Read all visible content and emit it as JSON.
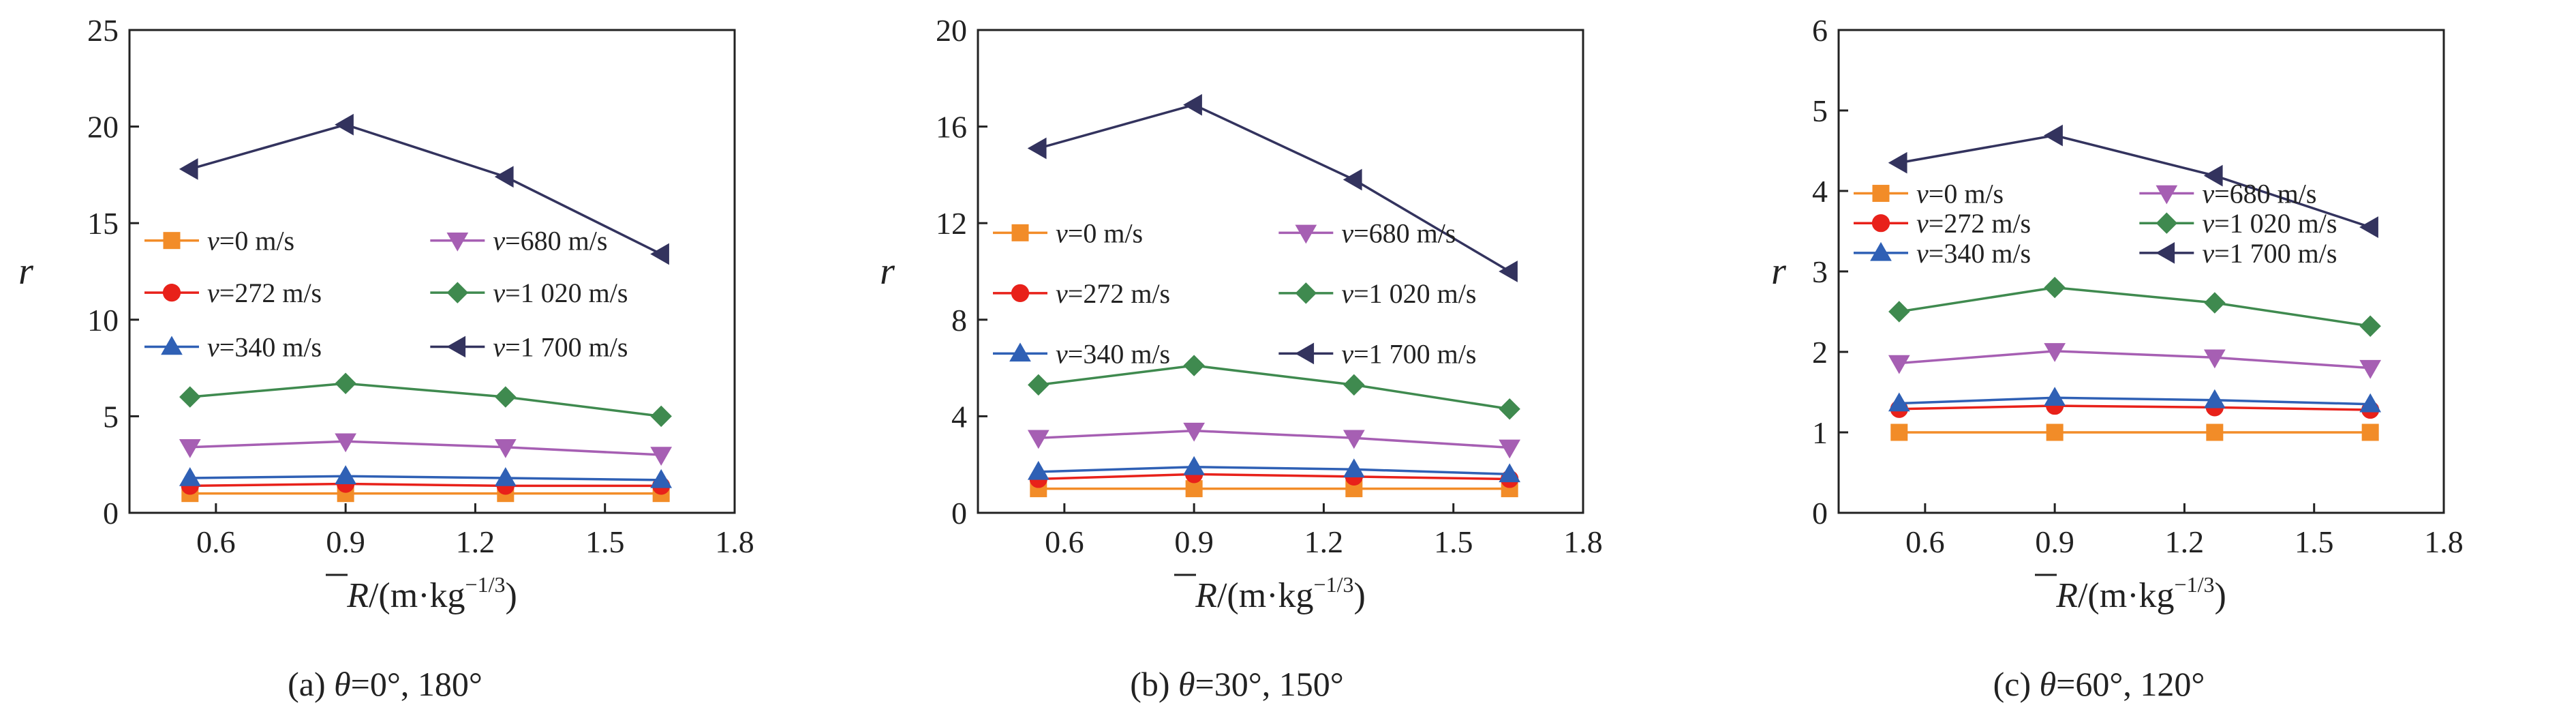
{
  "figure": {
    "panel_caption_angles": [
      {
        "prefix": "(a) ",
        "theta": "θ",
        "rest": "=0°, 180°"
      },
      {
        "prefix": "(b) ",
        "theta": "θ",
        "rest": "=30°, 150°"
      },
      {
        "prefix": "(c) ",
        "theta": "θ",
        "rest": "=60°, 120°"
      }
    ],
    "x_axis_label": {
      "symbol": "R",
      "unit_open": "/(m·kg",
      "exponent": "−1/3",
      "unit_close": ")"
    },
    "y_axis_label": "r"
  },
  "chart_data": [
    {
      "type": "line",
      "caption": "(a) θ=0°, 180°",
      "xlabel": "R̄/(m·kg⁻¹ᐟ³)",
      "ylabel": "r",
      "xlim": [
        0.4,
        1.8
      ],
      "xticks": [
        "0.6",
        "0.9",
        "1.2",
        "1.5",
        "1.8"
      ],
      "ylim": [
        0,
        25
      ],
      "yticks": [
        "0",
        "5",
        "10",
        "15",
        "20",
        "25"
      ],
      "legend_columns": [
        0.4,
        0.4
      ],
      "legend_rows": [
        10.3,
        7.3
      ],
      "legend_row_values": [
        14.1,
        11.4,
        8.6,
        5.8
      ],
      "legend_text_offset": [
        0.1,
        0.12
      ],
      "x": [
        0.54,
        0.9,
        1.27,
        1.63
      ],
      "series": [
        {
          "name": "v=0 m/s",
          "v": "v",
          "rest": "=0 m/s",
          "marker": "square",
          "color": "#f28c28",
          "values": [
            1.0,
            1.0,
            1.0,
            1.0
          ]
        },
        {
          "name": "v=272 m/s",
          "v": "v",
          "rest": "=272 m/s",
          "marker": "circle",
          "color": "#e8211a",
          "values": [
            1.4,
            1.5,
            1.4,
            1.4
          ]
        },
        {
          "name": "v=340 m/s",
          "v": "v",
          "rest": "=340 m/s",
          "marker": "triangle-up",
          "color": "#2f60b5",
          "values": [
            1.8,
            1.9,
            1.8,
            1.7
          ]
        },
        {
          "name": "v=680 m/s",
          "v": "v",
          "rest": "=680 m/s",
          "marker": "triangle-down",
          "color": "#a65fb3",
          "values": [
            3.4,
            3.7,
            3.4,
            3.0
          ]
        },
        {
          "name": "v=1 020 m/s",
          "v": "v",
          "rest": "=1 020 m/s",
          "marker": "diamond",
          "color": "#3f8a4f",
          "values": [
            6.0,
            6.7,
            6.0,
            5.0
          ]
        },
        {
          "name": "v=1 700 m/s",
          "v": "v",
          "rest": "=1 700 m/s",
          "marker": "triangle-left",
          "color": "#33335e",
          "values": [
            17.8,
            20.1,
            17.4,
            13.4
          ]
        }
      ]
    },
    {
      "type": "line",
      "caption": "(b) θ=30°, 150°",
      "xlabel": "R̄/(m·kg⁻¹ᐟ³)",
      "ylabel": "r",
      "xlim": [
        0.4,
        1.8
      ],
      "xticks": [
        "0.6",
        "0.9",
        "1.2",
        "1.5",
        "1.8"
      ],
      "ylim": [
        0,
        20
      ],
      "yticks": [
        "0",
        "4",
        "8",
        "12",
        "16",
        "20"
      ],
      "legend_columns": [
        0.4,
        0.4
      ],
      "legend_rows": [
        11.2,
        8.3
      ],
      "legend_row_values": [
        11.6,
        9.1,
        6.6,
        4.0
      ],
      "legend_text_offset": [
        0.1,
        0.12
      ],
      "x": [
        0.54,
        0.9,
        1.27,
        1.63
      ],
      "series": [
        {
          "name": "v=0 m/s",
          "v": "v",
          "rest": "=0 m/s",
          "marker": "square",
          "color": "#f28c28",
          "values": [
            1.0,
            1.0,
            1.0,
            1.0
          ]
        },
        {
          "name": "v=272 m/s",
          "v": "v",
          "rest": "=272 m/s",
          "marker": "circle",
          "color": "#e8211a",
          "values": [
            1.4,
            1.6,
            1.5,
            1.4
          ]
        },
        {
          "name": "v=340 m/s",
          "v": "v",
          "rest": "=340 m/s",
          "marker": "triangle-up",
          "color": "#2f60b5",
          "values": [
            1.7,
            1.9,
            1.8,
            1.6
          ]
        },
        {
          "name": "v=680 m/s",
          "v": "v",
          "rest": "=680 m/s",
          "marker": "triangle-down",
          "color": "#a65fb3",
          "values": [
            3.1,
            3.4,
            3.1,
            2.7
          ]
        },
        {
          "name": "v=1 020 m/s",
          "v": "v",
          "rest": "=1 020 m/s",
          "marker": "diamond",
          "color": "#3f8a4f",
          "values": [
            5.3,
            6.1,
            5.3,
            4.3
          ]
        },
        {
          "name": "v=1 700 m/s",
          "v": "v",
          "rest": "=1 700 m/s",
          "marker": "triangle-left",
          "color": "#33335e",
          "values": [
            15.1,
            16.9,
            13.8,
            10.0
          ]
        }
      ]
    },
    {
      "type": "line",
      "caption": "(c) θ=60°, 120°",
      "xlabel": "R̄/(m·kg⁻¹ᐟ³)",
      "ylabel": "r",
      "xlim": [
        0.4,
        1.8
      ],
      "xticks": [
        "0.6",
        "0.9",
        "1.2",
        "1.5",
        "1.8"
      ],
      "ylim": [
        0,
        6
      ],
      "yticks": [
        "0",
        "1",
        "2",
        "3",
        "4",
        "5",
        "6"
      ],
      "legend_columns": [
        0.4,
        0.4
      ],
      "legend_rows": [
        2.78,
        1.92
      ],
      "legend_row_values": [
        3.97,
        3.6,
        3.23,
        2.86
      ],
      "legend_text_offset": [
        0.1,
        0.12
      ],
      "x": [
        0.54,
        0.9,
        1.27,
        1.63
      ],
      "series": [
        {
          "name": "v=0 m/s",
          "v": "v",
          "rest": "=0 m/s",
          "marker": "square",
          "color": "#f28c28",
          "values": [
            1.0,
            1.0,
            1.0,
            1.0
          ]
        },
        {
          "name": "v=272 m/s",
          "v": "v",
          "rest": "=272 m/s",
          "marker": "circle",
          "color": "#e8211a",
          "values": [
            1.29,
            1.33,
            1.31,
            1.28
          ]
        },
        {
          "name": "v=340 m/s",
          "v": "v",
          "rest": "=340 m/s",
          "marker": "triangle-up",
          "color": "#2f60b5",
          "values": [
            1.36,
            1.43,
            1.4,
            1.35
          ]
        },
        {
          "name": "v=680 m/s",
          "v": "v",
          "rest": "=680 m/s",
          "marker": "triangle-down",
          "color": "#a65fb3",
          "values": [
            1.86,
            2.01,
            1.93,
            1.8
          ]
        },
        {
          "name": "v=1 020 m/s",
          "v": "v",
          "rest": "=1 020 m/s",
          "marker": "diamond",
          "color": "#3f8a4f",
          "values": [
            2.5,
            2.8,
            2.61,
            2.32
          ]
        },
        {
          "name": "v=1 700 m/s",
          "v": "v",
          "rest": "=1 700 m/s",
          "marker": "triangle-left",
          "color": "#33335e",
          "values": [
            4.35,
            4.69,
            4.19,
            3.55
          ]
        }
      ]
    }
  ]
}
